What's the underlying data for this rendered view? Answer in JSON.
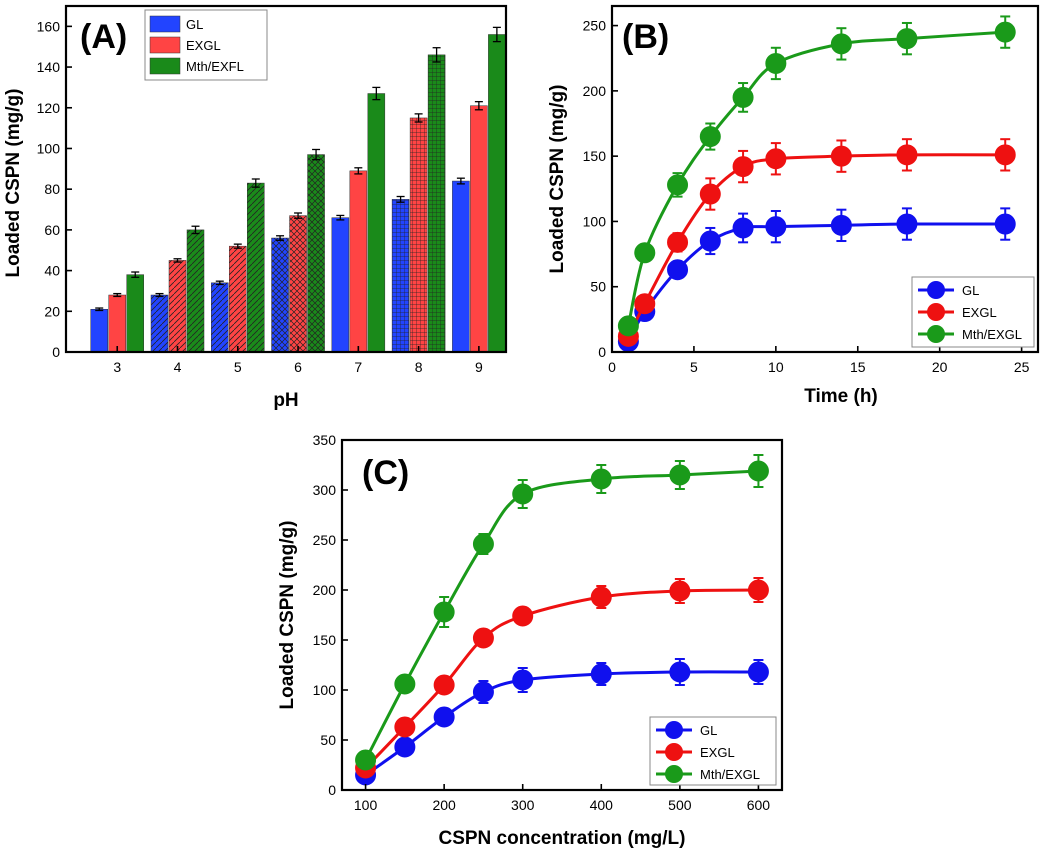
{
  "chart_data": [
    {
      "panel": "(A)",
      "type": "bar",
      "title": "(A)",
      "xlabel": "pH",
      "ylabel": "Loaded CSPN (mg/g)",
      "ylim": [
        0,
        170
      ],
      "yticks": [
        0,
        20,
        40,
        60,
        80,
        100,
        120,
        140,
        160
      ],
      "categories": [
        "3",
        "4",
        "5",
        "6",
        "7",
        "8",
        "9"
      ],
      "legend_position": "top-center",
      "series": [
        {
          "name": "GL",
          "color": "#2244ff",
          "values": [
            21,
            28,
            34,
            56,
            66,
            75,
            84
          ],
          "errors": [
            0.6,
            0.7,
            0.8,
            1.1,
            1.1,
            1.4,
            1.4
          ]
        },
        {
          "name": "EXGL",
          "color": "#ff4444",
          "values": [
            28,
            45,
            52,
            67,
            89,
            115,
            121
          ],
          "errors": [
            0.7,
            0.8,
            1.0,
            1.3,
            1.5,
            2.0,
            2.0
          ]
        },
        {
          "name": "Mth/EXFL",
          "color": "#1a8a1a",
          "values": [
            38,
            60,
            83,
            97,
            127,
            146,
            156
          ],
          "errors": [
            1.3,
            1.8,
            2.0,
            2.5,
            3.0,
            3.5,
            3.5
          ]
        }
      ]
    },
    {
      "panel": "(B)",
      "type": "line",
      "title": "(B)",
      "xlabel": "Time (h)",
      "ylabel": "Loaded CSPN (mg/g)",
      "xlim": [
        0,
        26
      ],
      "ylim": [
        0,
        265
      ],
      "xticks": [
        0,
        5,
        10,
        15,
        20,
        25
      ],
      "yticks": [
        0,
        50,
        100,
        150,
        200,
        250
      ],
      "legend_position": "bottom-right",
      "series": [
        {
          "name": "GL",
          "color": "#1010ee",
          "x": [
            1,
            2,
            4,
            6,
            8,
            10,
            14,
            18,
            24
          ],
          "values": [
            8,
            31,
            63,
            85,
            95,
            96,
            97,
            98,
            98
          ],
          "errors": [
            4,
            5,
            6,
            10,
            11,
            12,
            12,
            12,
            12
          ]
        },
        {
          "name": "EXGL",
          "color": "#ee1111",
          "x": [
            1,
            2,
            4,
            6,
            8,
            10,
            14,
            18,
            24
          ],
          "values": [
            12,
            37,
            84,
            121,
            142,
            148,
            150,
            151,
            151
          ],
          "errors": [
            5,
            5,
            7,
            12,
            12,
            12,
            12,
            12,
            12
          ]
        },
        {
          "name": "Mth/EXGL",
          "color": "#1a9a1a",
          "x": [
            1,
            2,
            4,
            6,
            8,
            10,
            14,
            18,
            24
          ],
          "values": [
            20,
            76,
            128,
            165,
            195,
            221,
            236,
            240,
            245
          ],
          "errors": [
            5,
            6,
            9,
            10,
            11,
            12,
            12,
            12,
            12
          ]
        }
      ]
    },
    {
      "panel": "(C)",
      "type": "line",
      "title": "(C)",
      "xlabel": "CSPN concentration (mg/L)",
      "ylabel": "Loaded CSPN (mg/g)",
      "xlim": [
        70,
        630
      ],
      "ylim": [
        0,
        350
      ],
      "xticks": [
        100,
        200,
        300,
        400,
        500,
        600
      ],
      "yticks": [
        0,
        50,
        100,
        150,
        200,
        250,
        300,
        350
      ],
      "legend_position": "bottom-right",
      "series": [
        {
          "name": "GL",
          "color": "#1010ee",
          "x": [
            100,
            150,
            200,
            250,
            300,
            400,
            500,
            600
          ],
          "values": [
            15,
            43,
            73,
            98,
            110,
            116,
            118,
            118
          ],
          "errors": [
            5,
            6,
            7,
            11,
            12,
            11,
            13,
            12
          ]
        },
        {
          "name": "EXGL",
          "color": "#ee1111",
          "x": [
            100,
            150,
            200,
            250,
            300,
            400,
            500,
            600
          ],
          "values": [
            22,
            63,
            105,
            152,
            174,
            193,
            199,
            200
          ],
          "errors": [
            5,
            6,
            7,
            8,
            8,
            11,
            12,
            12
          ]
        },
        {
          "name": "Mth/EXGL",
          "color": "#1a9a1a",
          "x": [
            100,
            150,
            200,
            250,
            300,
            400,
            500,
            600
          ],
          "values": [
            30,
            106,
            178,
            246,
            296,
            311,
            315,
            319
          ],
          "errors": [
            5,
            6,
            15,
            10,
            14,
            14,
            14,
            16
          ]
        }
      ]
    }
  ]
}
